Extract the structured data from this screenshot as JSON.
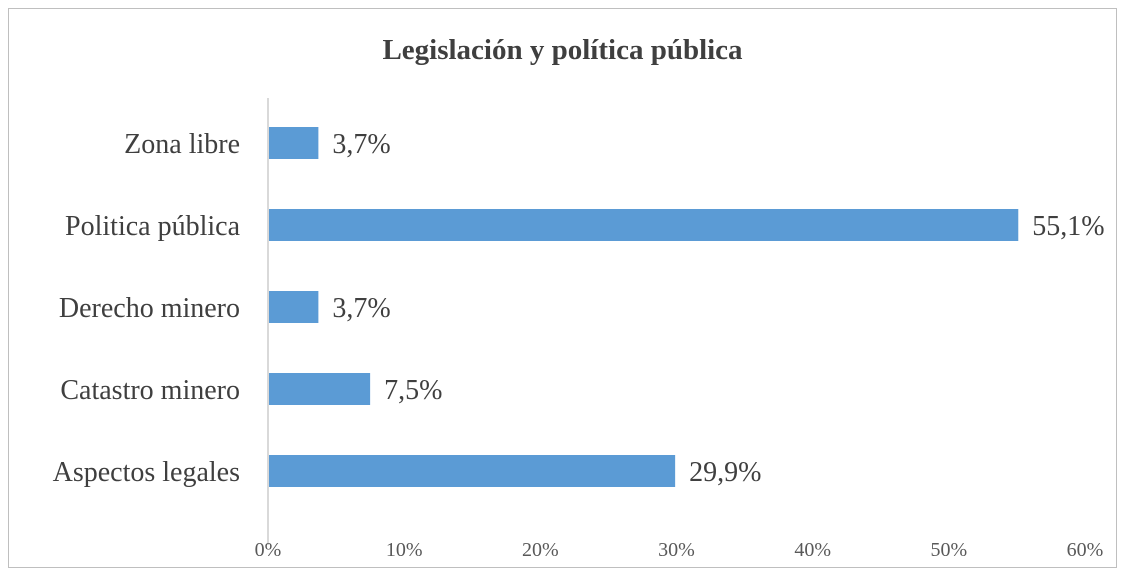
{
  "chart_data": {
    "type": "bar",
    "orientation": "horizontal",
    "title": "Legislación y política pública",
    "categories": [
      "Zona libre",
      "Politica pública",
      "Derecho minero",
      "Catastro minero",
      "Aspectos legales"
    ],
    "values": [
      3.7,
      55.1,
      3.7,
      7.5,
      29.9
    ],
    "value_labels": [
      "3,7%",
      "55,1%",
      "3,7%",
      "7,5%",
      "29,9%"
    ],
    "xlim": [
      0,
      60
    ],
    "x_ticks": [
      0,
      10,
      20,
      30,
      40,
      50,
      60
    ],
    "x_tick_labels": [
      "0%",
      "10%",
      "20%",
      "30%",
      "40%",
      "50%",
      "60%"
    ],
    "xlabel": "",
    "ylabel": "",
    "grid": false,
    "legend": "none",
    "bar_color": "#5b9bd5"
  }
}
